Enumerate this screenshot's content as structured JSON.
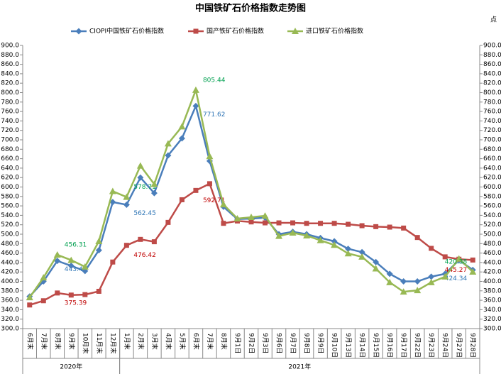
{
  "chart_data": {
    "type": "line",
    "title": "中国铁矿石价格指数走势图",
    "unit": "点",
    "categories": [
      "6月末",
      "7月末",
      "8月末",
      "9月末",
      "10月末",
      "11月末",
      "12月末",
      "1月末",
      "2月末",
      "3月末",
      "4月末",
      "5月末",
      "6月末",
      "7月末",
      "8月末",
      "9月1日",
      "9月2日",
      "9月3日",
      "9月6日",
      "9月7日",
      "9月8日",
      "9月9日",
      "9月10日",
      "9月13日",
      "9月14日",
      "9月15日",
      "9月16日",
      "9月17日",
      "9月22日",
      "9月23日",
      "9月24日",
      "9月27日",
      "9月28日"
    ],
    "groups": [
      {
        "name": "2020年",
        "count": 7
      },
      {
        "name": "2021年",
        "count": 26
      }
    ],
    "series": [
      {
        "name": "CIOPI中国铁矿石价格指数",
        "color": "#4a7ebb",
        "marker": "diamond",
        "label_color": "#2e75b6",
        "values": [
          368,
          400,
          443.45,
          433,
          422,
          466,
          568,
          562.45,
          620,
          587,
          667,
          703,
          771.62,
          655,
          558,
          532,
          533,
          535,
          500,
          505,
          500,
          492,
          485,
          469,
          462,
          441,
          416,
          400,
          400,
          410,
          416,
          445,
          424.34
        ],
        "value_labels": [
          null,
          null,
          "443.45",
          null,
          null,
          null,
          null,
          "562.45",
          null,
          null,
          null,
          null,
          "771.62",
          null,
          null,
          null,
          null,
          null,
          null,
          null,
          null,
          null,
          null,
          null,
          null,
          null,
          null,
          null,
          null,
          null,
          null,
          null,
          "424.34"
        ]
      },
      {
        "name": "国产铁矿石价格指数",
        "color": "#be4b48",
        "marker": "square",
        "label_color": "#c00000",
        "values": [
          350,
          359,
          375.39,
          371,
          372,
          379,
          441,
          476.42,
          489,
          484,
          525,
          573,
          592.71,
          607,
          523,
          528,
          526,
          524,
          524,
          524,
          523,
          523,
          523,
          521,
          518,
          516,
          515,
          513,
          493,
          470,
          452,
          447,
          445.27
        ],
        "value_labels": [
          null,
          null,
          "375.39",
          null,
          null,
          null,
          null,
          "476.42",
          null,
          null,
          null,
          null,
          "592.71",
          null,
          null,
          null,
          null,
          null,
          null,
          null,
          null,
          null,
          null,
          null,
          null,
          null,
          null,
          null,
          null,
          null,
          null,
          null,
          "445.27"
        ]
      },
      {
        "name": "进口铁矿石价格指数",
        "color": "#98b954",
        "marker": "triangle",
        "label_color": "#00a050",
        "values": [
          366,
          408,
          456.31,
          445,
          431,
          485,
          591,
          578.71,
          645,
          606,
          692,
          728,
          805.44,
          665,
          563,
          533,
          536,
          539,
          496,
          503,
          497,
          487,
          477,
          459,
          452,
          427,
          398,
          378,
          381,
          398,
          410,
          448,
          420.38
        ],
        "value_labels": [
          null,
          null,
          "456.31",
          null,
          null,
          null,
          null,
          "578.71",
          null,
          null,
          null,
          null,
          "805.44",
          null,
          null,
          null,
          null,
          null,
          null,
          null,
          null,
          null,
          null,
          null,
          null,
          null,
          null,
          null,
          null,
          null,
          null,
          null,
          "420.38"
        ]
      }
    ],
    "ylim": [
      300,
      900
    ],
    "yticks": [
      {
        "value": 300,
        "label": "300.0"
      },
      {
        "value": 320,
        "label": "320.0"
      },
      {
        "value": 340,
        "label": "340.0"
      },
      {
        "value": 360,
        "label": "360.0"
      },
      {
        "value": 380,
        "label": "380.0"
      },
      {
        "value": 400,
        "label": "400.0"
      },
      {
        "value": 420,
        "label": "420.0"
      },
      {
        "value": 440,
        "label": "440.0"
      },
      {
        "value": 460,
        "label": "460.0"
      },
      {
        "value": 480,
        "label": "480.0"
      },
      {
        "value": 500,
        "label": "500.0"
      },
      {
        "value": 520,
        "label": "520.0"
      },
      {
        "value": 540,
        "label": "540.0"
      },
      {
        "value": 560,
        "label": "560.0"
      },
      {
        "value": 580,
        "label": "580.0"
      },
      {
        "value": 600,
        "label": "600.0"
      },
      {
        "value": 620,
        "label": "620.0"
      },
      {
        "value": 640,
        "label": "640.0"
      },
      {
        "value": 660,
        "label": "660.0"
      },
      {
        "value": 680,
        "label": "680.0"
      },
      {
        "value": 700,
        "label": "700.0"
      },
      {
        "value": 720,
        "label": "720.0"
      },
      {
        "value": 740,
        "label": "740.0"
      },
      {
        "value": 760,
        "label": "760.0"
      },
      {
        "value": 780,
        "label": "780.0"
      },
      {
        "value": 800,
        "label": "800.0"
      },
      {
        "value": 820,
        "label": "820.0"
      },
      {
        "value": 840,
        "label": "840.0"
      },
      {
        "value": 860,
        "label": "860.0"
      },
      {
        "value": 880,
        "label": "880.0"
      },
      {
        "value": 900,
        "label": "900.0"
      }
    ],
    "y2lim": [
      300,
      900
    ],
    "y2ticks": [
      {
        "value": 300,
        "label": "300.0"
      },
      {
        "value": 320,
        "label": "320.0"
      },
      {
        "value": 340,
        "label": "340.0"
      },
      {
        "value": 360,
        "label": "360.0"
      },
      {
        "value": 380,
        "label": "380.0"
      },
      {
        "value": 400,
        "label": "400.0"
      },
      {
        "value": 420,
        "label": "420.0"
      },
      {
        "value": 440,
        "label": "440.0"
      },
      {
        "value": 460,
        "label": "460.0"
      },
      {
        "value": 480,
        "label": "480.0"
      },
      {
        "value": 500,
        "label": "500.0"
      },
      {
        "value": 520,
        "label": "520.0"
      },
      {
        "value": 540,
        "label": "540.0"
      },
      {
        "value": 560,
        "label": "560.0"
      },
      {
        "value": 580,
        "label": "580.0"
      },
      {
        "value": 600,
        "label": "600.0"
      },
      {
        "value": 620,
        "label": "620.0"
      },
      {
        "value": 640,
        "label": "640.0"
      },
      {
        "value": 660,
        "label": "660.0"
      },
      {
        "value": 680,
        "label": "680.0"
      },
      {
        "value": 700,
        "label": "700.0"
      },
      {
        "value": 720,
        "label": "720.0"
      },
      {
        "value": 740,
        "label": "740.0"
      },
      {
        "value": 760,
        "label": "760.0"
      },
      {
        "value": 780,
        "label": "780.0"
      },
      {
        "value": 800,
        "label": "800.0"
      },
      {
        "value": 820,
        "label": "820.0"
      },
      {
        "value": 840,
        "label": "840.0"
      },
      {
        "value": 860,
        "label": "860.0"
      },
      {
        "value": 880,
        "label": "880.0"
      },
      {
        "value": 900,
        "label": "900.0"
      }
    ],
    "grid": false,
    "legend": "top"
  }
}
